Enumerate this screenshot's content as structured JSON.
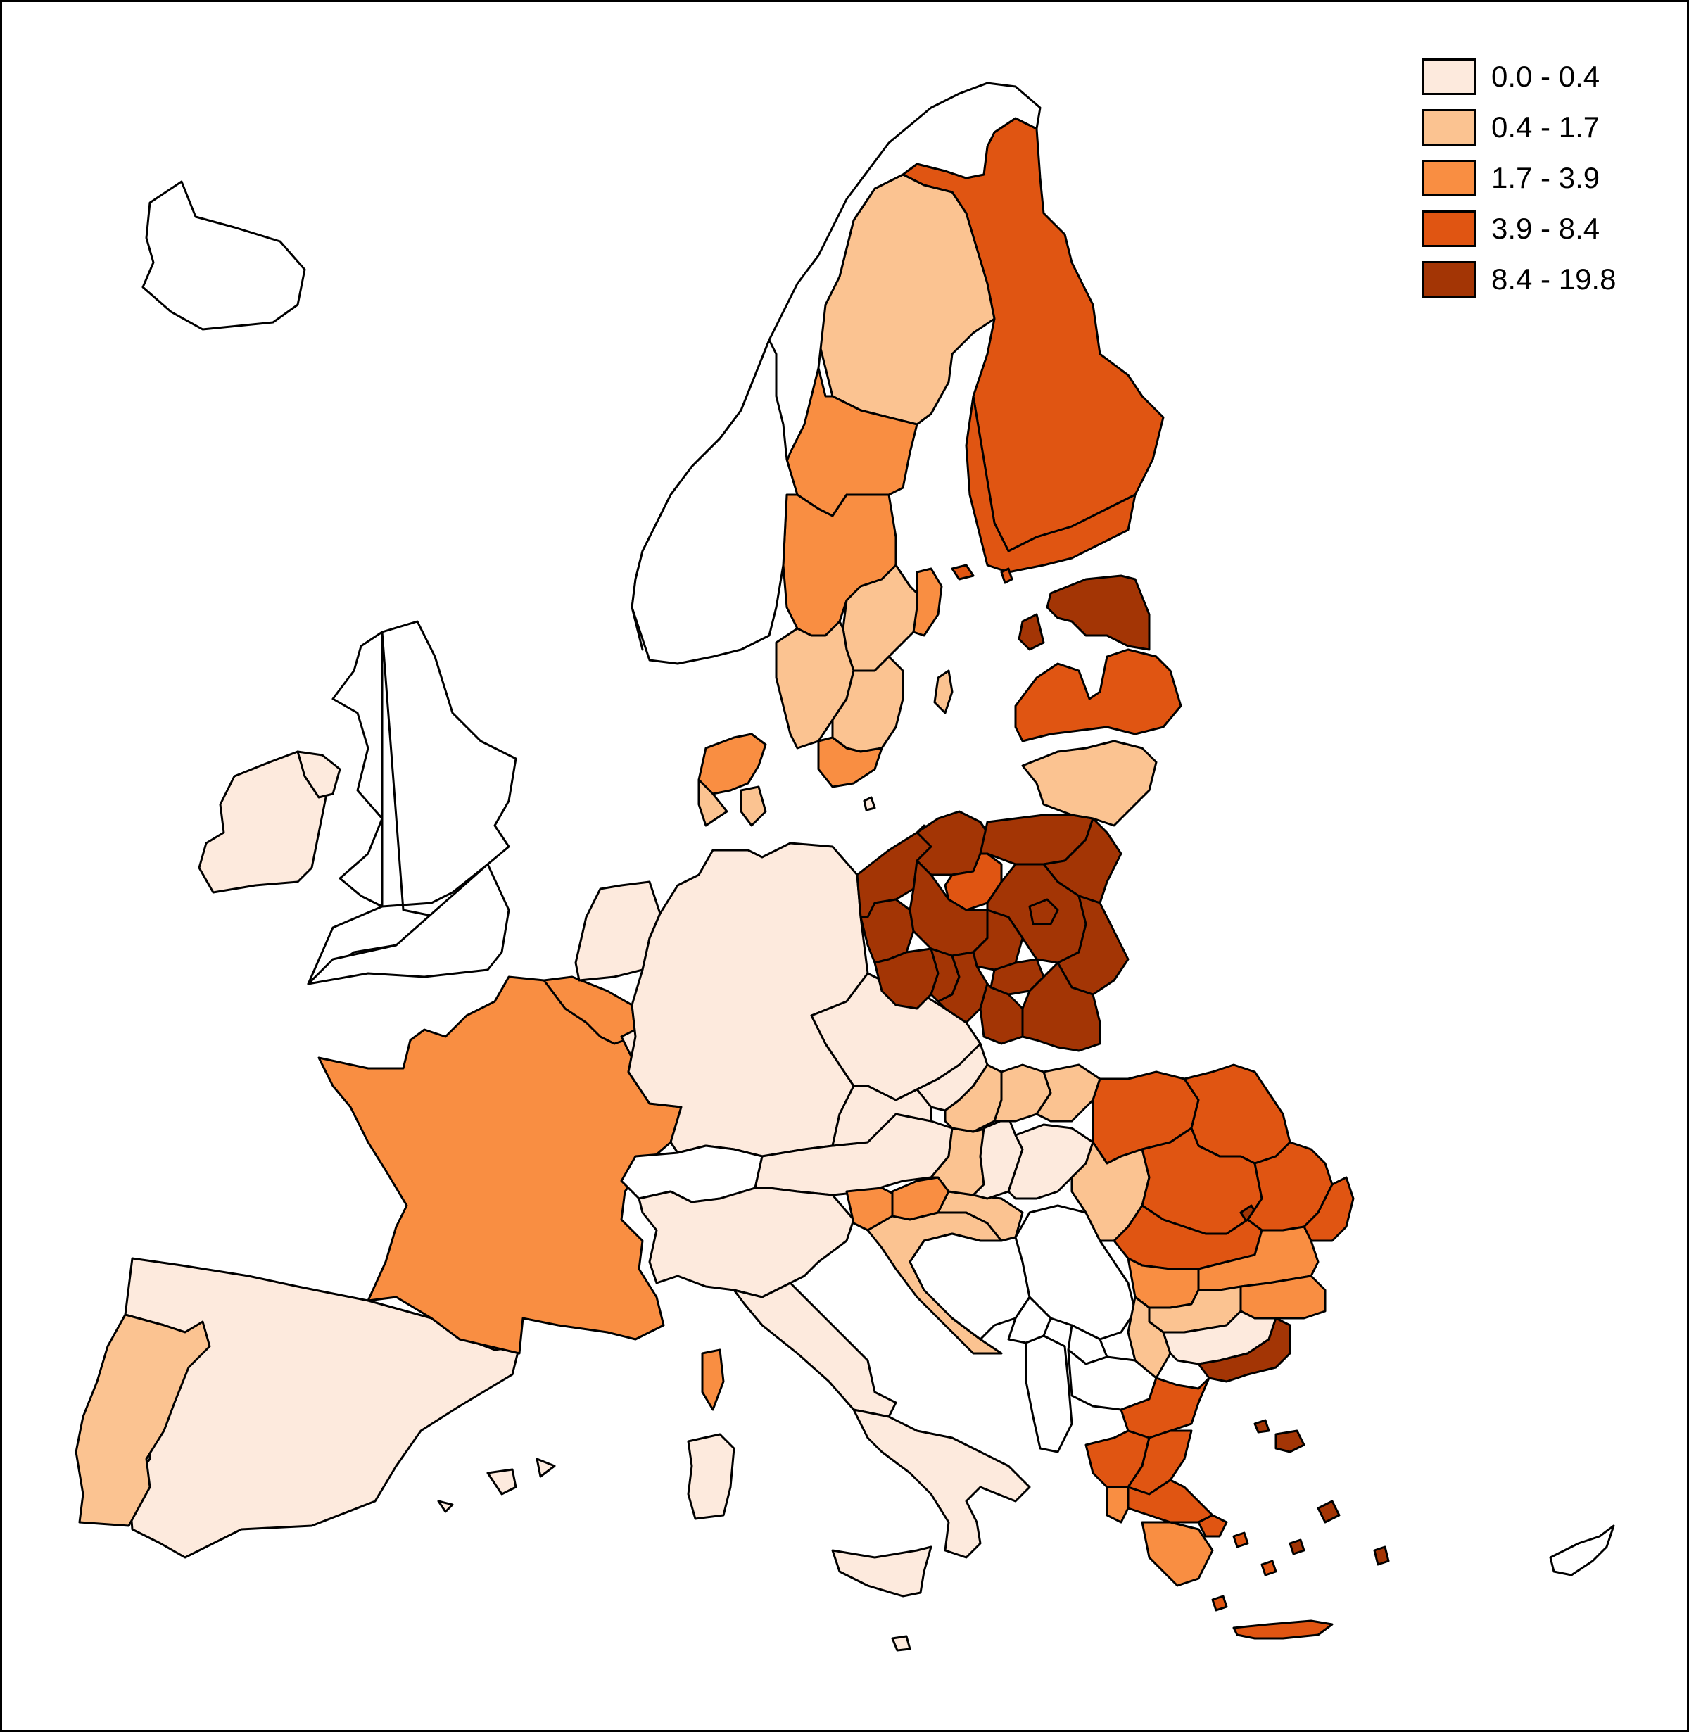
{
  "legend": {
    "classes": [
      {
        "label": "0.0 - 0.4",
        "color": "#fdeadd"
      },
      {
        "label": "0.4 - 1.7",
        "color": "#fbc391"
      },
      {
        "label": "1.7 - 3.9",
        "color": "#f98e42"
      },
      {
        "label": "3.9 - 8.4",
        "color": "#e05512"
      },
      {
        "label": "8.4 - 19.8",
        "color": "#a33505"
      }
    ]
  },
  "colors": {
    "no_data": "#ffffff",
    "border": "#000000"
  }
}
